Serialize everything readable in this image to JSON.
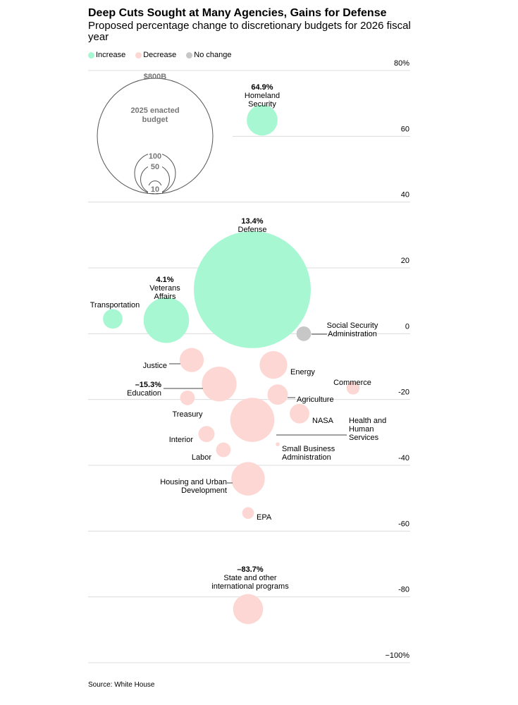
{
  "title": "Deep Cuts Sought at Many Agencies, Gains for Defense",
  "subtitle": "Proposed percentage change to discretionary budgets for 2026 fiscal year",
  "legend": [
    {
      "label": "Increase",
      "color": "#a7f7d3"
    },
    {
      "label": "Decrease",
      "color": "#fdd7d3"
    },
    {
      "label": "No change",
      "color": "#c7c7c7"
    }
  ],
  "source": "Source: White House",
  "size_key": {
    "label": "2025 enacted budget",
    "circles": [
      {
        "label": "$800B",
        "value": 800
      },
      {
        "label": "100",
        "value": 100
      },
      {
        "label": "50",
        "value": 50
      },
      {
        "label": "10",
        "value": 10
      }
    ]
  },
  "chart_data": {
    "type": "scatter",
    "title": "Deep Cuts Sought at Many Agencies, Gains for Defense",
    "ylim": [
      -100,
      80
    ],
    "yticks": [
      80,
      60,
      40,
      20,
      0,
      -20,
      -40,
      -60,
      -80,
      -100
    ],
    "ytick_labels": [
      "80%",
      "60",
      "40",
      "20",
      "0",
      "-20",
      "-40",
      "-60",
      "-80",
      "−100%"
    ],
    "grid": true,
    "legend_position": "top-left",
    "points": [
      {
        "name": "Homeland Security",
        "label_lines": [
          "Homeland",
          "Security"
        ],
        "value_label": "64.9%",
        "change": 64.9,
        "budget_b": 62,
        "status": "increase"
      },
      {
        "name": "Defense",
        "label_lines": [
          "Defense"
        ],
        "value_label": "13.4%",
        "change": 13.4,
        "budget_b": 893,
        "status": "increase"
      },
      {
        "name": "Veterans Affairs",
        "label_lines": [
          "Veterans",
          "Affairs"
        ],
        "value_label": "4.1%",
        "change": 4.1,
        "budget_b": 135,
        "status": "increase"
      },
      {
        "name": "Transportation",
        "label_lines": [
          "Transportation"
        ],
        "change": 4.5,
        "budget_b": 25,
        "status": "increase"
      },
      {
        "name": "Social Security Administration",
        "label_lines": [
          "Social Security",
          "Administration"
        ],
        "change": 0,
        "budget_b": 14,
        "status": "no change"
      },
      {
        "name": "Justice",
        "label_lines": [
          "Justice"
        ],
        "change": -8,
        "budget_b": 38,
        "status": "decrease"
      },
      {
        "name": "Energy",
        "label_lines": [
          "Energy"
        ],
        "change": -9.5,
        "budget_b": 50,
        "status": "decrease"
      },
      {
        "name": "Education",
        "label_lines": [
          "Education"
        ],
        "value_label": "–15.3%",
        "change": -15.3,
        "budget_b": 79,
        "status": "decrease"
      },
      {
        "name": "Commerce",
        "label_lines": [
          "Commerce"
        ],
        "change": -16.5,
        "budget_b": 11,
        "status": "decrease"
      },
      {
        "name": "Treasury",
        "label_lines": [
          "Treasury"
        ],
        "change": -19.5,
        "budget_b": 14,
        "status": "decrease"
      },
      {
        "name": "Agriculture",
        "label_lines": [
          "Agriculture"
        ],
        "change": -18.5,
        "budget_b": 27,
        "status": "decrease"
      },
      {
        "name": "NASA",
        "label_lines": [
          "NASA"
        ],
        "change": -24.3,
        "budget_b": 25,
        "status": "decrease"
      },
      {
        "name": "Health and Human Services",
        "label_lines": [
          "Health and",
          "Human",
          "Services"
        ],
        "change": -26.2,
        "budget_b": 127,
        "status": "decrease"
      },
      {
        "name": "Interior",
        "label_lines": [
          "Interior"
        ],
        "change": -30.5,
        "budget_b": 17,
        "status": "decrease"
      },
      {
        "name": "Small Business Administration",
        "label_lines": [
          "Small Business",
          "Administration"
        ],
        "change": -33.6,
        "budget_b": 1,
        "status": "decrease"
      },
      {
        "name": "Labor",
        "label_lines": [
          "Labor"
        ],
        "change": -35.3,
        "budget_b": 14,
        "status": "decrease"
      },
      {
        "name": "Housing and Urban Development",
        "label_lines": [
          "Housing and Urban",
          "Development"
        ],
        "change": -44.1,
        "budget_b": 73,
        "status": "decrease"
      },
      {
        "name": "EPA",
        "label_lines": [
          "EPA"
        ],
        "change": -54.5,
        "budget_b": 9,
        "status": "decrease"
      },
      {
        "name": "State and other international programs",
        "label_lines": [
          "State and other",
          "international programs"
        ],
        "value_label": "–83.7%",
        "change": -83.7,
        "budget_b": 59,
        "status": "decrease"
      }
    ]
  }
}
